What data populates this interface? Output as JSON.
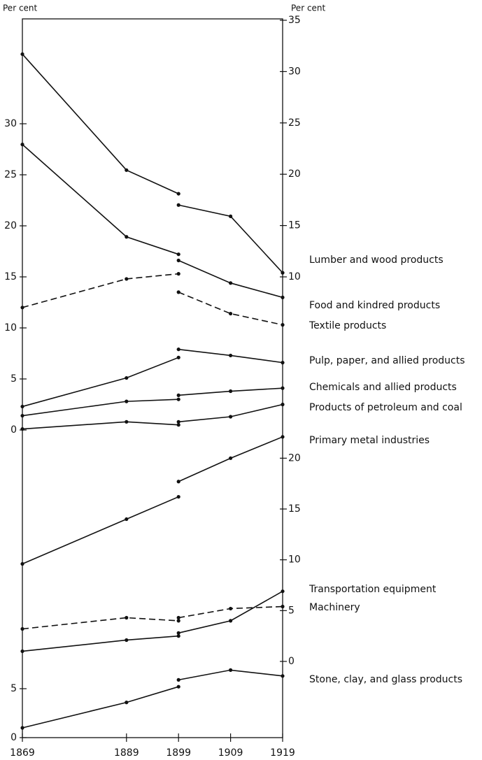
{
  "chart_data": [
    {
      "type": "line",
      "ylabel": "Per cent",
      "y2label": "Per cent",
      "xlim": [
        1869,
        1919
      ],
      "ylim": [
        0,
        40
      ],
      "yticks": [
        0,
        5,
        10,
        15,
        20,
        25,
        30
      ],
      "y2lim": [
        10,
        35
      ],
      "y2ticks": [
        10,
        15,
        20,
        25,
        30,
        35
      ],
      "series": [
        {
          "name": "Lumber and wood products",
          "color": "#111111",
          "axis": "y2",
          "dashed": false,
          "segments": [
            {
              "x": [
                1869,
                1889,
                1899
              ],
              "values": [
                31.7,
                20.4,
                18.1
              ]
            },
            {
              "x": [
                1899,
                1909,
                1919
              ],
              "values": [
                17.0,
                15.9,
                10.4
              ]
            }
          ]
        },
        {
          "name": "Food and kindred products",
          "color": "#111111",
          "axis": "y2",
          "dashed": false,
          "segments": [
            {
              "x": [
                1869,
                1889,
                1899
              ],
              "values": [
                22.9,
                13.9,
                12.2
              ]
            },
            {
              "x": [
                1899,
                1909,
                1919
              ],
              "values": [
                11.6,
                9.4,
                8.0
              ]
            }
          ]
        },
        {
          "name": "Textile products",
          "color": "#111111",
          "axis": "y",
          "dashed": true,
          "segments": [
            {
              "x": [
                1869,
                1889,
                1899
              ],
              "values": [
                12.0,
                14.8,
                15.3
              ]
            },
            {
              "x": [
                1899,
                1909,
                1919
              ],
              "values": [
                13.5,
                11.4,
                10.3
              ]
            }
          ]
        },
        {
          "name": "Pulp, paper, and allied products",
          "color": "#111111",
          "axis": "y",
          "dashed": false,
          "segments": [
            {
              "x": [
                1869,
                1889,
                1899
              ],
              "values": [
                2.3,
                5.1,
                7.1
              ]
            },
            {
              "x": [
                1899,
                1909,
                1919
              ],
              "values": [
                7.9,
                7.3,
                6.6
              ]
            }
          ]
        },
        {
          "name": "Chemicals and allied products",
          "color": "#111111",
          "axis": "y",
          "dashed": false,
          "segments": [
            {
              "x": [
                1869,
                1889,
                1899
              ],
              "values": [
                1.4,
                2.8,
                3.0
              ]
            },
            {
              "x": [
                1899,
                1909,
                1919
              ],
              "values": [
                3.4,
                3.8,
                4.1
              ]
            }
          ]
        },
        {
          "name": "Products of petroleum and coal",
          "color": "#111111",
          "axis": "y",
          "dashed": false,
          "segments": [
            {
              "x": [
                1869,
                1889,
                1899
              ],
              "values": [
                0.1,
                0.8,
                0.5
              ]
            },
            {
              "x": [
                1899,
                1909,
                1919
              ],
              "values": [
                0.8,
                1.3,
                2.5
              ]
            }
          ]
        }
      ]
    },
    {
      "type": "line",
      "xlim": [
        1869,
        1919
      ],
      "xticks": [
        1869,
        1889,
        1899,
        1909,
        1919
      ],
      "ylim": [
        0,
        30
      ],
      "yticks": [
        0,
        5
      ],
      "y2lim": [
        -7.5,
        22.5
      ],
      "y2ticks": [
        0,
        5,
        10,
        15,
        20
      ],
      "series": [
        {
          "name": "Primary metal industries",
          "color": "#111111",
          "axis": "y2",
          "dashed": false,
          "segments": [
            {
              "x": [
                1869,
                1889,
                1899
              ],
              "values": [
                9.6,
                14.0,
                16.2
              ]
            },
            {
              "x": [
                1899,
                1909,
                1919
              ],
              "values": [
                17.7,
                20.0,
                22.1
              ]
            }
          ]
        },
        {
          "name": "Transportation equipment",
          "color": "#111111",
          "axis": "y2",
          "dashed": false,
          "segments": [
            {
              "x": [
                1869,
                1889,
                1899
              ],
              "values": [
                1.0,
                2.1,
                2.5
              ]
            },
            {
              "x": [
                1899,
                1909,
                1919
              ],
              "values": [
                2.8,
                4.0,
                6.9
              ]
            }
          ]
        },
        {
          "name": "Machinery",
          "color": "#111111",
          "axis": "y2",
          "dashed": true,
          "segments": [
            {
              "x": [
                1869,
                1889,
                1899
              ],
              "values": [
                3.2,
                4.3,
                4.0
              ]
            },
            {
              "x": [
                1899,
                1909,
                1919
              ],
              "values": [
                4.3,
                5.2,
                5.4
              ]
            }
          ]
        },
        {
          "name": "Stone, clay, and glass products",
          "color": "#111111",
          "axis": "y",
          "dashed": false,
          "segments": [
            {
              "x": [
                1869,
                1889,
                1899
              ],
              "values": [
                1.0,
                3.6,
                5.2
              ]
            },
            {
              "x": [
                1899,
                1909,
                1919
              ],
              "values": [
                5.9,
                6.9,
                6.3
              ]
            }
          ]
        }
      ]
    }
  ]
}
